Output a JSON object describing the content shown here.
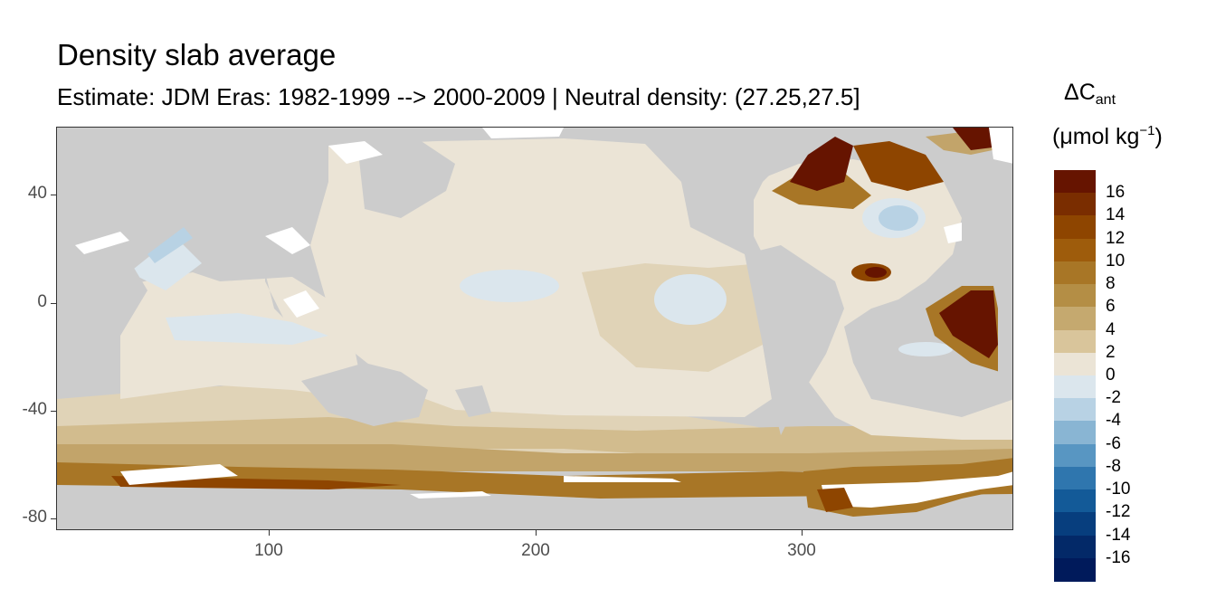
{
  "title": "Density slab average",
  "subtitle": "Estimate: JDM Eras: 1982-1999 --> 2000-2009 | Neutral density: (27.25,27.5]",
  "legend": {
    "symbol": "ΔC",
    "symbol_sub": "ant",
    "unit_open": "(μmol kg",
    "unit_sup": "−1",
    "unit_close": ")",
    "labels": [
      "16",
      "14",
      "12",
      "10",
      "8",
      "6",
      "4",
      "2",
      "0",
      "-2",
      "-4",
      "-6",
      "-8",
      "-10",
      "-12",
      "-14",
      "-16"
    ],
    "colors": [
      "#661400",
      "#7a2d00",
      "#8e4500",
      "#9e5c0c",
      "#a87626",
      "#b48e45",
      "#c5a96f",
      "#d9c59b",
      "#ebe4d6",
      "#dbe6ed",
      "#b8d2e4",
      "#89b5d3",
      "#5896c2",
      "#2f76ae",
      "#135a98",
      "#073e7e",
      "#032968",
      "#001a5b"
    ]
  },
  "axes": {
    "y_ticks": [
      "40",
      "0",
      "-40",
      "-80"
    ],
    "x_ticks": [
      "100",
      "200",
      "300"
    ]
  },
  "map_colors": {
    "land": "#cccccc",
    "near_zero": "#ebe4d6",
    "slight_positive": "#e0d3b7",
    "positive": "#d2bc8e",
    "moderate": "#c2a46a",
    "strong": "#a87626",
    "very_strong": "#8e4500",
    "max": "#661400",
    "slight_negative": "#dbe6ed",
    "negative": "#b8d2e4",
    "more_negative": "#89b5d3",
    "strong_negative": "#2f76ae",
    "ice": "#ffffff"
  }
}
